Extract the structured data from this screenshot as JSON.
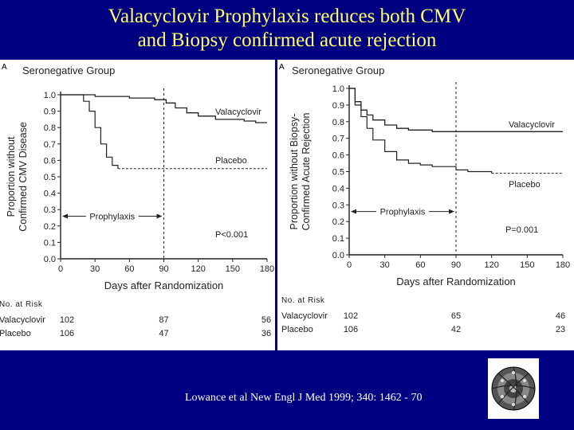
{
  "slide": {
    "title_line1": "Valacyclovir Prophylaxis reduces both CMV",
    "title_line2": "and  Biopsy confirmed acute rejection",
    "citation": "Lowance et al New Engl J Med 1999; 340: 1462 - 70",
    "colors": {
      "background": "#000080",
      "title": "#ffff66",
      "citation": "#ffffff"
    },
    "logo_icon": "escher-circle-limit-icon"
  },
  "chart_data": [
    {
      "type": "line",
      "panel_label": "A",
      "title": "Seronegative Group",
      "xlabel": "Days after Randomization",
      "ylabel_line1": "Proportion without",
      "ylabel_line2": "Confirmed CMV Disease",
      "xlim": [
        0,
        180
      ],
      "ylim": [
        0,
        1.0
      ],
      "x_ticks": [
        "0",
        "30",
        "60",
        "90",
        "120",
        "150",
        "180"
      ],
      "y_ticks": [
        "0.0",
        "0.1",
        "0.2",
        "0.3",
        "0.4",
        "0.5",
        "0.6",
        "0.7",
        "0.8",
        "0.9",
        "1.0"
      ],
      "series": [
        {
          "name": "Valacyclovir",
          "style": "solid",
          "x": [
            0,
            18,
            30,
            60,
            82,
            92,
            100,
            110,
            120,
            135,
            150,
            160,
            170,
            180
          ],
          "y": [
            1.0,
            1.0,
            0.99,
            0.98,
            0.97,
            0.95,
            0.92,
            0.89,
            0.87,
            0.85,
            0.85,
            0.84,
            0.83,
            0.83
          ]
        },
        {
          "name": "Placebo",
          "style": "solid-then-dashed",
          "x": [
            0,
            18,
            20,
            25,
            30,
            35,
            40,
            45,
            50,
            60,
            90,
            180
          ],
          "y": [
            1.0,
            1.0,
            0.96,
            0.9,
            0.8,
            0.7,
            0.62,
            0.57,
            0.55,
            0.55,
            0.55,
            0.55
          ]
        }
      ],
      "prophylaxis_end_day": 90,
      "annotations": {
        "prophylaxis": "Prophylaxis",
        "p_value": "P<0.001"
      },
      "at_risk": {
        "header": "No. at Risk",
        "rows": [
          {
            "name": "Valacyclovir",
            "values": [
              "102",
              "87",
              "56"
            ]
          },
          {
            "name": "Placebo",
            "values": [
              "106",
              "47",
              "36"
            ]
          }
        ]
      }
    },
    {
      "type": "line",
      "panel_label": "A",
      "title": "Seronegative Group",
      "xlabel": "Days after Randomization",
      "ylabel_line1": "Proportion without Biopsy-",
      "ylabel_line2": "Confirmed Acute Rejection",
      "xlim": [
        0,
        180
      ],
      "ylim": [
        0,
        1.0
      ],
      "x_ticks": [
        "0",
        "30",
        "60",
        "90",
        "120",
        "150",
        "180"
      ],
      "y_ticks": [
        "0.0",
        "0.1",
        "0.2",
        "0.3",
        "0.4",
        "0.5",
        "0.6",
        "0.7",
        "0.8",
        "0.9",
        "1.0"
      ],
      "series": [
        {
          "name": "Valacyclovir",
          "style": "solid",
          "x": [
            0,
            5,
            10,
            15,
            20,
            30,
            40,
            50,
            70,
            90,
            180
          ],
          "y": [
            1.0,
            0.92,
            0.87,
            0.84,
            0.81,
            0.78,
            0.76,
            0.75,
            0.74,
            0.74,
            0.74
          ]
        },
        {
          "name": "Placebo",
          "style": "solid-then-dashed",
          "x": [
            0,
            5,
            10,
            15,
            20,
            30,
            40,
            50,
            60,
            70,
            90,
            100,
            120,
            150,
            180
          ],
          "y": [
            1.0,
            0.9,
            0.83,
            0.76,
            0.69,
            0.62,
            0.57,
            0.55,
            0.54,
            0.53,
            0.51,
            0.5,
            0.49,
            0.49,
            0.49
          ]
        }
      ],
      "prophylaxis_end_day": 90,
      "annotations": {
        "prophylaxis": "Prophylaxis",
        "p_value": "P=0.001"
      },
      "at_risk": {
        "header": "No. at Risk",
        "rows": [
          {
            "name": "Valacyclovir",
            "values": [
              "102",
              "65",
              "46"
            ]
          },
          {
            "name": "Placebo",
            "values": [
              "106",
              "42",
              "23"
            ]
          }
        ]
      }
    }
  ]
}
